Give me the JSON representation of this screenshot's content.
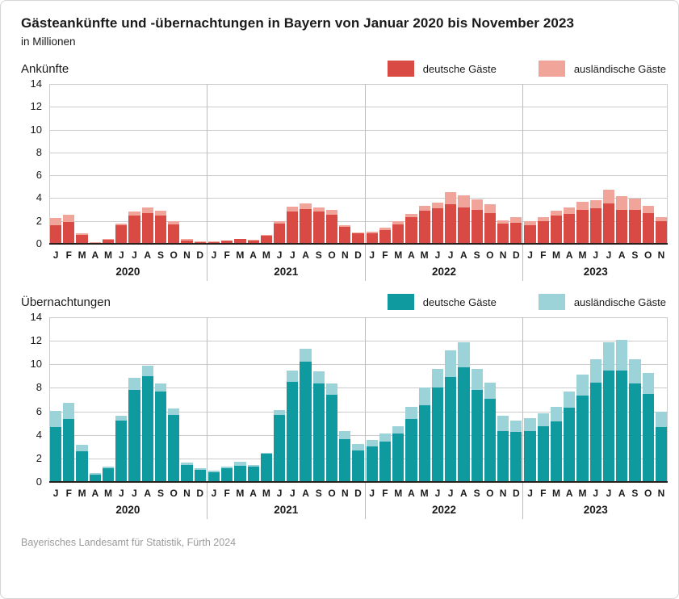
{
  "header": {
    "title": "Gästeankünfte und -übernachtungen in Bayern von Januar 2020 bis November 2023",
    "subtitle": "in Millionen"
  },
  "footer": {
    "source": "Bayerisches Landesamt für Statistik, Fürth 2024"
  },
  "colors": {
    "grid": "#cbcbcb",
    "year_separator": "#bdbdbd",
    "baseline": "#27211f",
    "arrivals_german": "#d94a45",
    "arrivals_foreign": "#f0a49a",
    "nights_german": "#0f9aa0",
    "nights_foreign": "#9cd3d8"
  },
  "chart_data": [
    {
      "type": "bar",
      "stacked": true,
      "title": "Ankünfte",
      "unit": "Millionen",
      "ylim": [
        0,
        14
      ],
      "yticks": [
        0,
        2,
        4,
        6,
        8,
        10,
        12,
        14
      ],
      "grid": true,
      "legend_position": "top-right",
      "legend": [
        {
          "label": "deutsche Gäste",
          "color": "#d94a45"
        },
        {
          "label": "ausländische Gäste",
          "color": "#f0a49a"
        }
      ],
      "series_names": [
        "deutsche Gäste",
        "ausländische Gäste"
      ],
      "years": [
        {
          "label": "2020",
          "months": [
            "J",
            "F",
            "M",
            "A",
            "M",
            "J",
            "J",
            "A",
            "S",
            "O",
            "N",
            "D"
          ],
          "german": [
            1.65,
            1.9,
            0.8,
            0.1,
            0.35,
            1.65,
            2.45,
            2.7,
            2.45,
            1.7,
            0.3,
            0.15
          ],
          "foreign": [
            0.6,
            0.65,
            0.15,
            0.05,
            0.05,
            0.1,
            0.4,
            0.5,
            0.45,
            0.25,
            0.1,
            0.05
          ]
        },
        {
          "label": "2021",
          "months": [
            "J",
            "F",
            "M",
            "A",
            "M",
            "J",
            "J",
            "A",
            "S",
            "O",
            "N",
            "D"
          ],
          "german": [
            0.15,
            0.25,
            0.4,
            0.3,
            0.7,
            1.8,
            2.85,
            3.05,
            2.85,
            2.55,
            1.5,
            0.9
          ],
          "foreign": [
            0.05,
            0.05,
            0.05,
            0.05,
            0.1,
            0.15,
            0.4,
            0.5,
            0.35,
            0.45,
            0.15,
            0.1
          ]
        },
        {
          "label": "2022",
          "months": [
            "J",
            "F",
            "M",
            "A",
            "M",
            "J",
            "J",
            "A",
            "S",
            "O",
            "N",
            "D"
          ],
          "german": [
            0.9,
            1.2,
            1.7,
            2.3,
            2.9,
            3.1,
            3.5,
            3.2,
            3.0,
            2.7,
            1.75,
            1.85
          ],
          "foreign": [
            0.15,
            0.25,
            0.3,
            0.35,
            0.45,
            0.5,
            1.05,
            1.05,
            0.9,
            0.8,
            0.3,
            0.45
          ]
        },
        {
          "label": "2023",
          "months": [
            "J",
            "F",
            "M",
            "A",
            "M",
            "J",
            "J",
            "A",
            "S",
            "O",
            "N"
          ],
          "german": [
            1.6,
            1.95,
            2.45,
            2.6,
            2.95,
            3.1,
            3.55,
            3.0,
            3.0,
            2.7,
            1.95
          ],
          "foreign": [
            0.4,
            0.4,
            0.45,
            0.6,
            0.7,
            0.7,
            1.2,
            1.15,
            0.95,
            0.6,
            0.35
          ]
        }
      ]
    },
    {
      "type": "bar",
      "stacked": true,
      "title": "Übernachtungen",
      "unit": "Millionen",
      "ylim": [
        0,
        14
      ],
      "yticks": [
        0,
        2,
        4,
        6,
        8,
        10,
        12,
        14
      ],
      "grid": true,
      "legend_position": "top-right",
      "legend": [
        {
          "label": "deutsche Gäste",
          "color": "#0f9aa0"
        },
        {
          "label": "ausländische Gäste",
          "color": "#9cd3d8"
        }
      ],
      "series_names": [
        "deutsche Gäste",
        "ausländische Gäste"
      ],
      "years": [
        {
          "label": "2020",
          "months": [
            "J",
            "F",
            "M",
            "A",
            "M",
            "J",
            "J",
            "A",
            "S",
            "O",
            "N",
            "D"
          ],
          "german": [
            4.7,
            5.35,
            2.6,
            0.65,
            1.15,
            5.25,
            7.85,
            9.0,
            7.7,
            5.7,
            1.45,
            1.05
          ],
          "foreign": [
            1.35,
            1.4,
            0.55,
            0.1,
            0.15,
            0.35,
            1.0,
            0.9,
            0.7,
            0.55,
            0.2,
            0.1
          ]
        },
        {
          "label": "2021",
          "months": [
            "J",
            "F",
            "M",
            "A",
            "M",
            "J",
            "J",
            "A",
            "S",
            "O",
            "N",
            "D"
          ],
          "german": [
            0.85,
            1.15,
            1.4,
            1.3,
            2.4,
            5.7,
            8.5,
            10.2,
            8.4,
            7.4,
            3.65,
            2.65
          ],
          "foreign": [
            0.1,
            0.15,
            0.3,
            0.15,
            0.1,
            0.4,
            1.0,
            1.15,
            1.0,
            1.0,
            0.65,
            0.55
          ]
        },
        {
          "label": "2022",
          "months": [
            "J",
            "F",
            "M",
            "A",
            "M",
            "J",
            "J",
            "A",
            "S",
            "O",
            "N",
            "D"
          ],
          "german": [
            3.05,
            3.45,
            4.1,
            5.35,
            6.55,
            8.0,
            8.95,
            9.75,
            7.85,
            7.1,
            4.35,
            4.25
          ],
          "foreign": [
            0.55,
            0.65,
            0.65,
            1.05,
            1.45,
            1.6,
            2.25,
            2.15,
            1.75,
            1.35,
            1.25,
            0.95
          ]
        },
        {
          "label": "2023",
          "months": [
            "J",
            "F",
            "M",
            "A",
            "M",
            "J",
            "J",
            "A",
            "S",
            "O",
            "N"
          ],
          "german": [
            4.3,
            4.75,
            5.15,
            6.3,
            7.35,
            8.45,
            9.45,
            9.5,
            8.4,
            7.5,
            4.7
          ],
          "foreign": [
            1.1,
            1.1,
            1.25,
            1.4,
            1.75,
            1.95,
            2.45,
            2.6,
            2.0,
            1.75,
            1.3
          ]
        }
      ]
    }
  ]
}
